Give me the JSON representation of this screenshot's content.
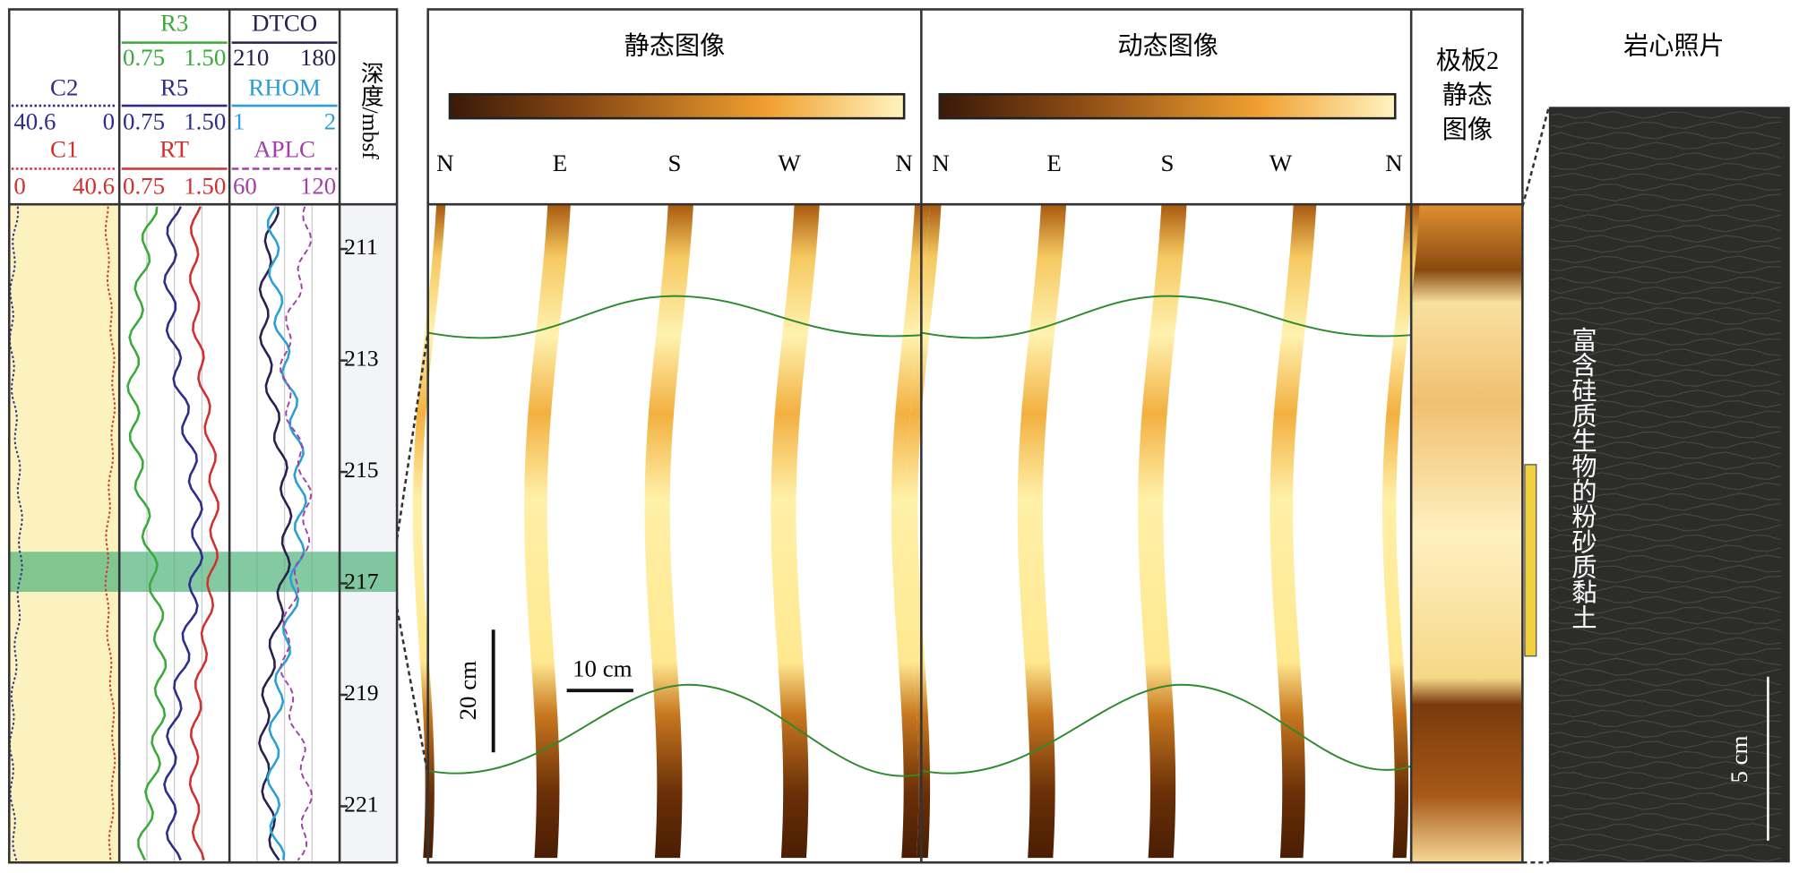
{
  "tracks": {
    "caliper": [
      {
        "name": "C2",
        "left": "40.6",
        "right": "0",
        "color": "#2e2e8a"
      },
      {
        "name": "C1",
        "left": "0",
        "right": "40.6",
        "color": "#d03030"
      }
    ],
    "resistivity": [
      {
        "name": "R3",
        "left": "0.75",
        "right": "1.50",
        "color": "#3aaa3a"
      },
      {
        "name": "R5",
        "left": "0.75",
        "right": "1.50",
        "color": "#2e2e8a"
      },
      {
        "name": "RT",
        "left": "0.75",
        "right": "1.50",
        "color": "#d03030"
      }
    ],
    "acoustic": [
      {
        "name": "DTCO",
        "left": "210",
        "right": "180",
        "color": "#2a2050"
      },
      {
        "name": "RHOM",
        "left": "1",
        "right": "2",
        "color": "#2a9fd6"
      },
      {
        "name": "APLC",
        "left": "60",
        "right": "120",
        "color": "#a040a8"
      }
    ],
    "depth": {
      "label": "深度/mbsf",
      "ticks": [
        211,
        213,
        215,
        217,
        219,
        221
      ]
    }
  },
  "images": {
    "static": {
      "title": "静态图像",
      "azimuths": [
        "N",
        "E",
        "S",
        "W",
        "N"
      ]
    },
    "dynamic": {
      "title": "动态图像",
      "azimuths": [
        "N",
        "E",
        "S",
        "W",
        "N"
      ]
    },
    "pad": {
      "title": [
        "极板2",
        "静态",
        "图像"
      ]
    }
  },
  "scales": {
    "vertical": "20 cm",
    "horizontal": "10 cm",
    "core": "5 cm"
  },
  "core": {
    "title": "岩心照片",
    "lithology": "富含硅质生物的粉砂质黏土"
  }
}
